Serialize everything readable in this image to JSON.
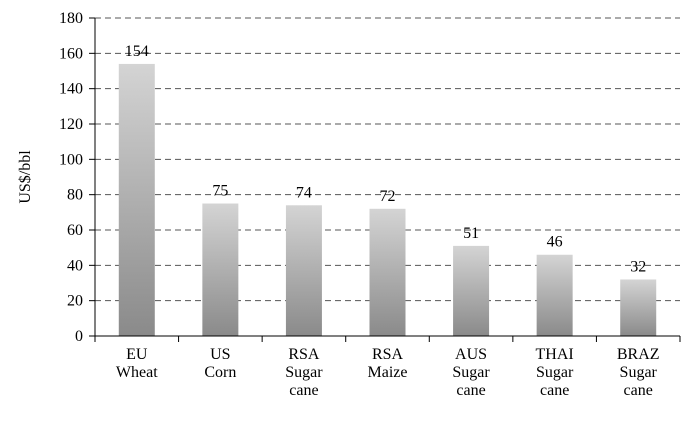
{
  "chart_data": {
    "type": "bar",
    "y_label": "US$/bbl",
    "categories": [
      "EU Wheat",
      "US Corn",
      "RSA Sugar cane",
      "RSA Maize",
      "AUS Sugar cane",
      "THAI Sugar cane",
      "BRAZ Sugar cane"
    ],
    "values": [
      154,
      75,
      74,
      72,
      51,
      46,
      32
    ],
    "color": "#a8a8a8",
    "ylim": [
      0,
      180
    ],
    "yticks": [
      0,
      20,
      40,
      60,
      80,
      100,
      120,
      140,
      160,
      180
    ],
    "grid": true,
    "grid_style": "dashed"
  }
}
